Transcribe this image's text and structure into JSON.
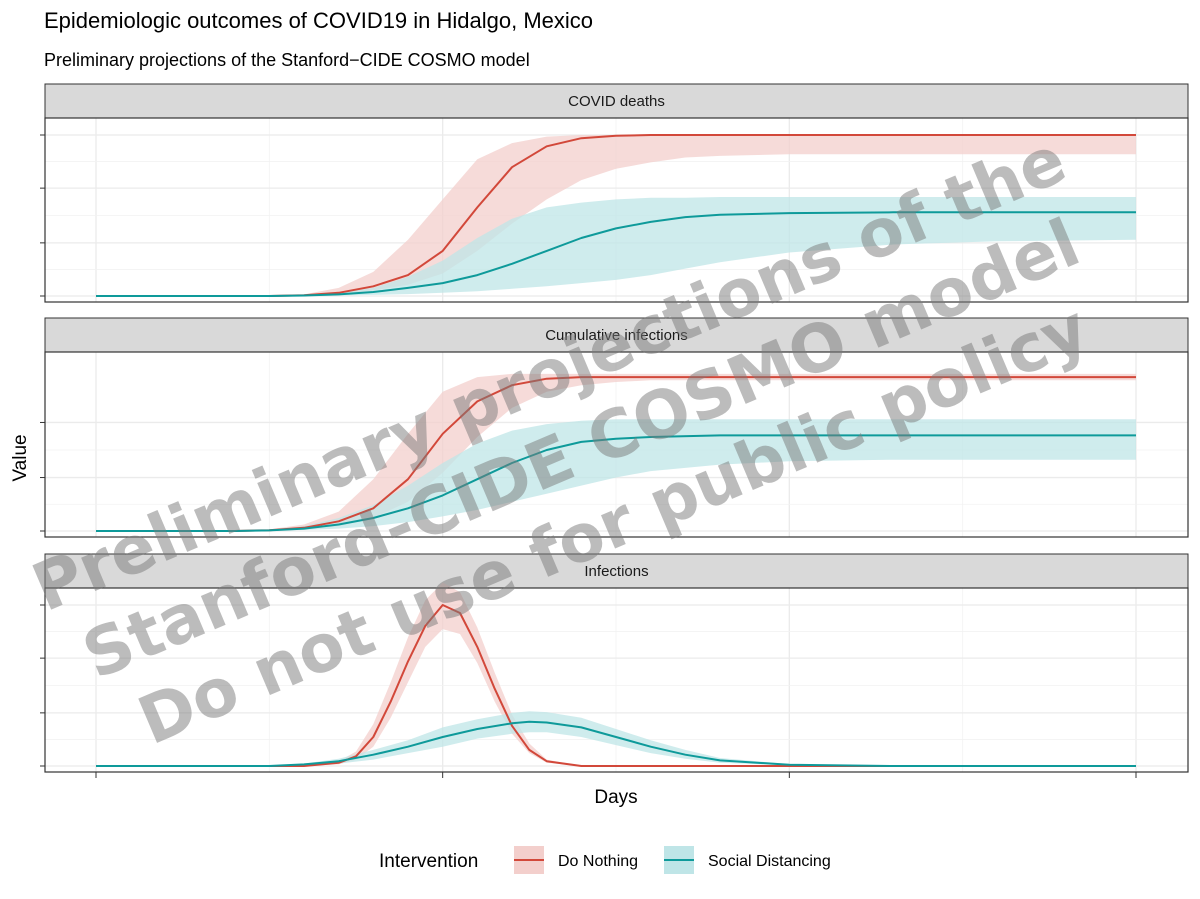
{
  "chart_data": {
    "type": "line",
    "title": "Epidemiologic outcomes of COVID19 in Hidalgo, Mexico",
    "subtitle": "Preliminary projections of the Stanford−CIDE COSMO model",
    "xlabel": "Days",
    "ylabel": "Value",
    "xlim": [
      0,
      300
    ],
    "x_ticks": [
      0,
      100,
      200,
      300
    ],
    "grid": true,
    "legend": {
      "title": "Intervention",
      "position": "bottom",
      "items": [
        {
          "label": "Do Nothing",
          "color": "#d2483a",
          "fill": "#f3cfcc"
        },
        {
          "label": "Social Distancing",
          "color": "#0e9a9a",
          "fill": "#bfe5e7"
        }
      ]
    },
    "panels": [
      {
        "label": "COVID deaths",
        "ylim": [
          0,
          1
        ],
        "y_ticks": [
          0,
          0.33,
          0.67,
          1.0
        ],
        "series": [
          {
            "name": "Do Nothing",
            "x": [
              0,
              50,
              60,
              70,
              80,
              90,
              100,
              110,
              120,
              130,
              140,
              150,
              160,
              170,
              180,
              200,
              230,
              260,
              300
            ],
            "y": [
              0,
              0,
              0.005,
              0.02,
              0.06,
              0.13,
              0.28,
              0.55,
              0.8,
              0.93,
              0.98,
              0.995,
              1.0,
              1.0,
              1.0,
              1.0,
              1.0,
              1.0,
              1.0
            ],
            "lower": [
              0,
              0,
              0.003,
              0.01,
              0.035,
              0.07,
              0.14,
              0.28,
              0.45,
              0.6,
              0.72,
              0.79,
              0.83,
              0.86,
              0.87,
              0.88,
              0.88,
              0.88,
              0.88
            ],
            "upper": [
              0,
              0,
              0.01,
              0.05,
              0.15,
              0.35,
              0.6,
              0.85,
              0.95,
              0.99,
              1.0,
              1.0,
              1.0,
              1.0,
              1.0,
              1.0,
              1.0,
              1.0,
              1.0
            ]
          },
          {
            "name": "Social Distancing",
            "x": [
              0,
              50,
              60,
              70,
              80,
              90,
              100,
              110,
              120,
              130,
              140,
              150,
              160,
              170,
              180,
              200,
              230,
              260,
              300
            ],
            "y": [
              0,
              0,
              0.003,
              0.01,
              0.025,
              0.05,
              0.08,
              0.13,
              0.2,
              0.28,
              0.36,
              0.42,
              0.46,
              0.49,
              0.505,
              0.515,
              0.52,
              0.52,
              0.52
            ],
            "lower": [
              0,
              0,
              0.001,
              0.003,
              0.007,
              0.012,
              0.02,
              0.03,
              0.045,
              0.06,
              0.08,
              0.1,
              0.13,
              0.17,
              0.21,
              0.27,
              0.32,
              0.34,
              0.35
            ],
            "upper": [
              0,
              0,
              0.005,
              0.02,
              0.05,
              0.12,
              0.22,
              0.36,
              0.48,
              0.55,
              0.58,
              0.6,
              0.61,
              0.61,
              0.615,
              0.615,
              0.615,
              0.615,
              0.615
            ]
          }
        ]
      },
      {
        "label": "Cumulative infections",
        "ylim": [
          0,
          1
        ],
        "y_ticks": [
          0,
          0.33,
          0.67
        ],
        "series": [
          {
            "name": "Do Nothing",
            "x": [
              0,
              40,
              50,
              60,
              70,
              80,
              90,
              100,
              110,
              120,
              130,
              140,
              150,
              160,
              180,
              200,
              230,
              260,
              300
            ],
            "y": [
              0,
              0,
              0.005,
              0.02,
              0.06,
              0.14,
              0.32,
              0.6,
              0.8,
              0.9,
              0.94,
              0.95,
              0.95,
              0.95,
              0.95,
              0.95,
              0.95,
              0.95,
              0.95
            ],
            "lower": [
              0,
              0,
              0.003,
              0.01,
              0.03,
              0.08,
              0.18,
              0.36,
              0.58,
              0.76,
              0.86,
              0.9,
              0.92,
              0.93,
              0.93,
              0.93,
              0.93,
              0.93,
              0.93
            ],
            "upper": [
              0,
              0,
              0.01,
              0.04,
              0.12,
              0.32,
              0.6,
              0.86,
              0.95,
              0.97,
              0.97,
              0.97,
              0.97,
              0.97,
              0.97,
              0.97,
              0.97,
              0.97,
              0.97
            ]
          },
          {
            "name": "Social Distancing",
            "x": [
              0,
              40,
              50,
              60,
              70,
              80,
              90,
              100,
              110,
              120,
              130,
              140,
              150,
              160,
              180,
              200,
              230,
              260,
              300
            ],
            "y": [
              0,
              0,
              0.004,
              0.015,
              0.04,
              0.08,
              0.14,
              0.22,
              0.32,
              0.42,
              0.5,
              0.55,
              0.57,
              0.58,
              0.59,
              0.59,
              0.59,
              0.59,
              0.59
            ],
            "lower": [
              0,
              0,
              0.002,
              0.006,
              0.015,
              0.03,
              0.055,
              0.09,
              0.13,
              0.18,
              0.23,
              0.28,
              0.33,
              0.37,
              0.41,
              0.43,
              0.44,
              0.44,
              0.44
            ],
            "upper": [
              0,
              0,
              0.007,
              0.03,
              0.08,
              0.16,
              0.28,
              0.42,
              0.54,
              0.62,
              0.66,
              0.68,
              0.69,
              0.69,
              0.69,
              0.69,
              0.69,
              0.69,
              0.69
            ]
          }
        ]
      },
      {
        "label": "Infections",
        "ylim": [
          0,
          1
        ],
        "y_ticks": [
          0,
          0.33,
          0.67,
          1.0
        ],
        "series": [
          {
            "name": "Do Nothing",
            "x": [
              0,
              60,
              70,
              75,
              80,
              85,
              90,
              95,
              100,
              105,
              110,
              115,
              120,
              125,
              130,
              140,
              160,
              200,
              300
            ],
            "y": [
              0,
              0,
              0.02,
              0.06,
              0.18,
              0.4,
              0.65,
              0.87,
              1.0,
              0.95,
              0.74,
              0.48,
              0.25,
              0.1,
              0.03,
              0,
              0,
              0,
              0
            ],
            "lower": [
              0,
              0,
              0.01,
              0.04,
              0.12,
              0.3,
              0.52,
              0.74,
              0.85,
              0.82,
              0.64,
              0.4,
              0.2,
              0.08,
              0.02,
              0,
              0,
              0,
              0
            ],
            "upper": [
              0,
              0,
              0.03,
              0.09,
              0.26,
              0.52,
              0.8,
              1.03,
              1.14,
              1.08,
              0.86,
              0.58,
              0.32,
              0.14,
              0.04,
              0,
              0,
              0,
              0
            ]
          },
          {
            "name": "Social Distancing",
            "x": [
              0,
              50,
              60,
              70,
              80,
              90,
              100,
              110,
              120,
              125,
              130,
              140,
              150,
              160,
              170,
              180,
              200,
              230,
              300
            ],
            "y": [
              0,
              0,
              0.01,
              0.03,
              0.07,
              0.12,
              0.18,
              0.23,
              0.265,
              0.275,
              0.27,
              0.24,
              0.18,
              0.12,
              0.07,
              0.035,
              0.008,
              0,
              0
            ],
            "lower": [
              0,
              0,
              0.005,
              0.015,
              0.04,
              0.08,
              0.12,
              0.17,
              0.2,
              0.21,
              0.21,
              0.18,
              0.13,
              0.08,
              0.045,
              0.02,
              0.004,
              0,
              0
            ],
            "upper": [
              0,
              0,
              0.015,
              0.045,
              0.1,
              0.16,
              0.24,
              0.29,
              0.33,
              0.34,
              0.335,
              0.3,
              0.23,
              0.16,
              0.1,
              0.05,
              0.012,
              0,
              0
            ]
          }
        ]
      }
    ]
  },
  "watermark": {
    "lines": [
      "Preliminary projections of the",
      "Stanford-CIDE COSMO model",
      "Do not use for public policy"
    ]
  }
}
